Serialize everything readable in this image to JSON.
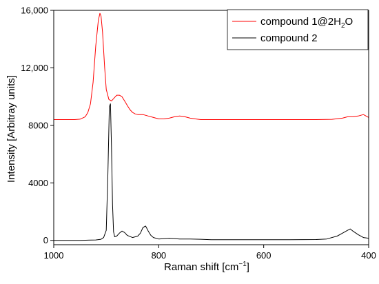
{
  "chart_data": {
    "type": "line",
    "title": "",
    "xlabel": "Raman shift [cm",
    "xlabel_sup": "−1",
    "xlabel_suffix": "]",
    "ylabel": "Intensity [Arbitray units]",
    "xlim": [
      1000,
      400
    ],
    "ylim": [
      -300,
      16000
    ],
    "x_reversed": true,
    "grid": false,
    "legend_position": "top-right",
    "x_ticks": [
      1000,
      800,
      600,
      400
    ],
    "x_tick_labels": [
      "1000",
      "800",
      "600",
      "400"
    ],
    "y_ticks": [
      0,
      4000,
      8000,
      12000,
      16000
    ],
    "y_tick_labels": [
      "0",
      "4000",
      "8000",
      "12,000",
      "16,000"
    ],
    "series": [
      {
        "name": "compound 1@2H2O",
        "color": "#ff0000",
        "x": [
          1000,
          960,
          950,
          940,
          935,
          930,
          925,
          920,
          915,
          912,
          910,
          907,
          903,
          900,
          895,
          890,
          885,
          880,
          875,
          870,
          865,
          860,
          855,
          850,
          845,
          840,
          830,
          820,
          810,
          800,
          790,
          780,
          770,
          760,
          750,
          740,
          730,
          720,
          700,
          650,
          600,
          550,
          500,
          470,
          450,
          440,
          430,
          420,
          410,
          400
        ],
        "y": [
          8400,
          8400,
          8430,
          8600,
          8900,
          9500,
          11000,
          13500,
          15300,
          15800,
          15600,
          14500,
          12000,
          10500,
          9800,
          9700,
          9900,
          10100,
          10100,
          10000,
          9700,
          9400,
          9100,
          8900,
          8800,
          8750,
          8750,
          8650,
          8550,
          8450,
          8450,
          8500,
          8600,
          8650,
          8600,
          8500,
          8450,
          8400,
          8400,
          8400,
          8400,
          8400,
          8400,
          8420,
          8500,
          8600,
          8600,
          8650,
          8750,
          8550
        ]
      },
      {
        "name": "compound 2",
        "color": "#000000",
        "x": [
          1000,
          950,
          920,
          910,
          905,
          900,
          897,
          894,
          892,
          890,
          888,
          886,
          884,
          880,
          875,
          870,
          865,
          860,
          850,
          840,
          835,
          830,
          825,
          820,
          815,
          810,
          800,
          780,
          760,
          740,
          720,
          700,
          650,
          600,
          550,
          500,
          480,
          460,
          450,
          440,
          435,
          430,
          420,
          410,
          400
        ],
        "y": [
          0,
          0,
          30,
          80,
          200,
          700,
          4500,
          9300,
          9500,
          6500,
          2500,
          600,
          250,
          300,
          500,
          650,
          550,
          350,
          200,
          300,
          500,
          900,
          1000,
          650,
          350,
          200,
          100,
          150,
          100,
          100,
          80,
          50,
          50,
          50,
          50,
          60,
          100,
          300,
          500,
          700,
          800,
          650,
          400,
          200,
          150
        ]
      }
    ]
  },
  "legend": {
    "series1_prefix": "compound 1@2H",
    "series1_sub": "2",
    "series1_suffix": "O",
    "series2": "compound 2"
  }
}
